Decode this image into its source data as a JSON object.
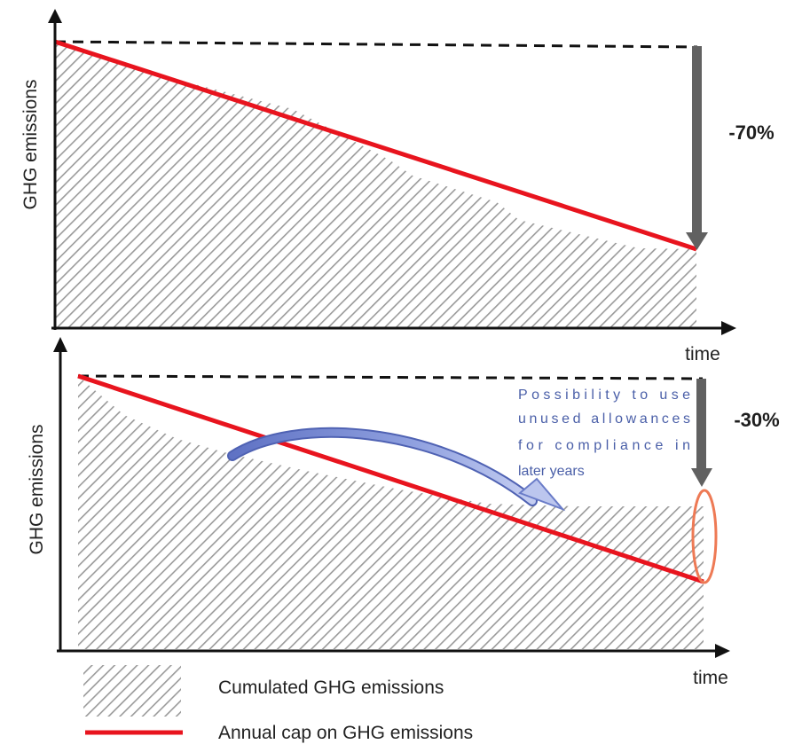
{
  "top_panel": {
    "y_axis_label": "GHG emissions",
    "x_axis_label": "time",
    "reduction_label": "-70%"
  },
  "bottom_panel": {
    "y_axis_label": "GHG emissions",
    "x_axis_label": "time",
    "reduction_label": "-30%",
    "annotation_lines": [
      "Possibility to use",
      "unused allowances",
      "for compliance in",
      "later years"
    ]
  },
  "legend": {
    "hatched_label": "Cumulated GHG emissions",
    "line_label": "Annual cap on GHG emissions"
  },
  "colors": {
    "cap_line": "#e8141e",
    "hatch": "#9a9a9a",
    "reduction_arrow": "#616161",
    "annotation_text": "#4a5fa8",
    "banking_arrow": "#7d8fd4",
    "ellipse": "#ee7a55"
  }
}
